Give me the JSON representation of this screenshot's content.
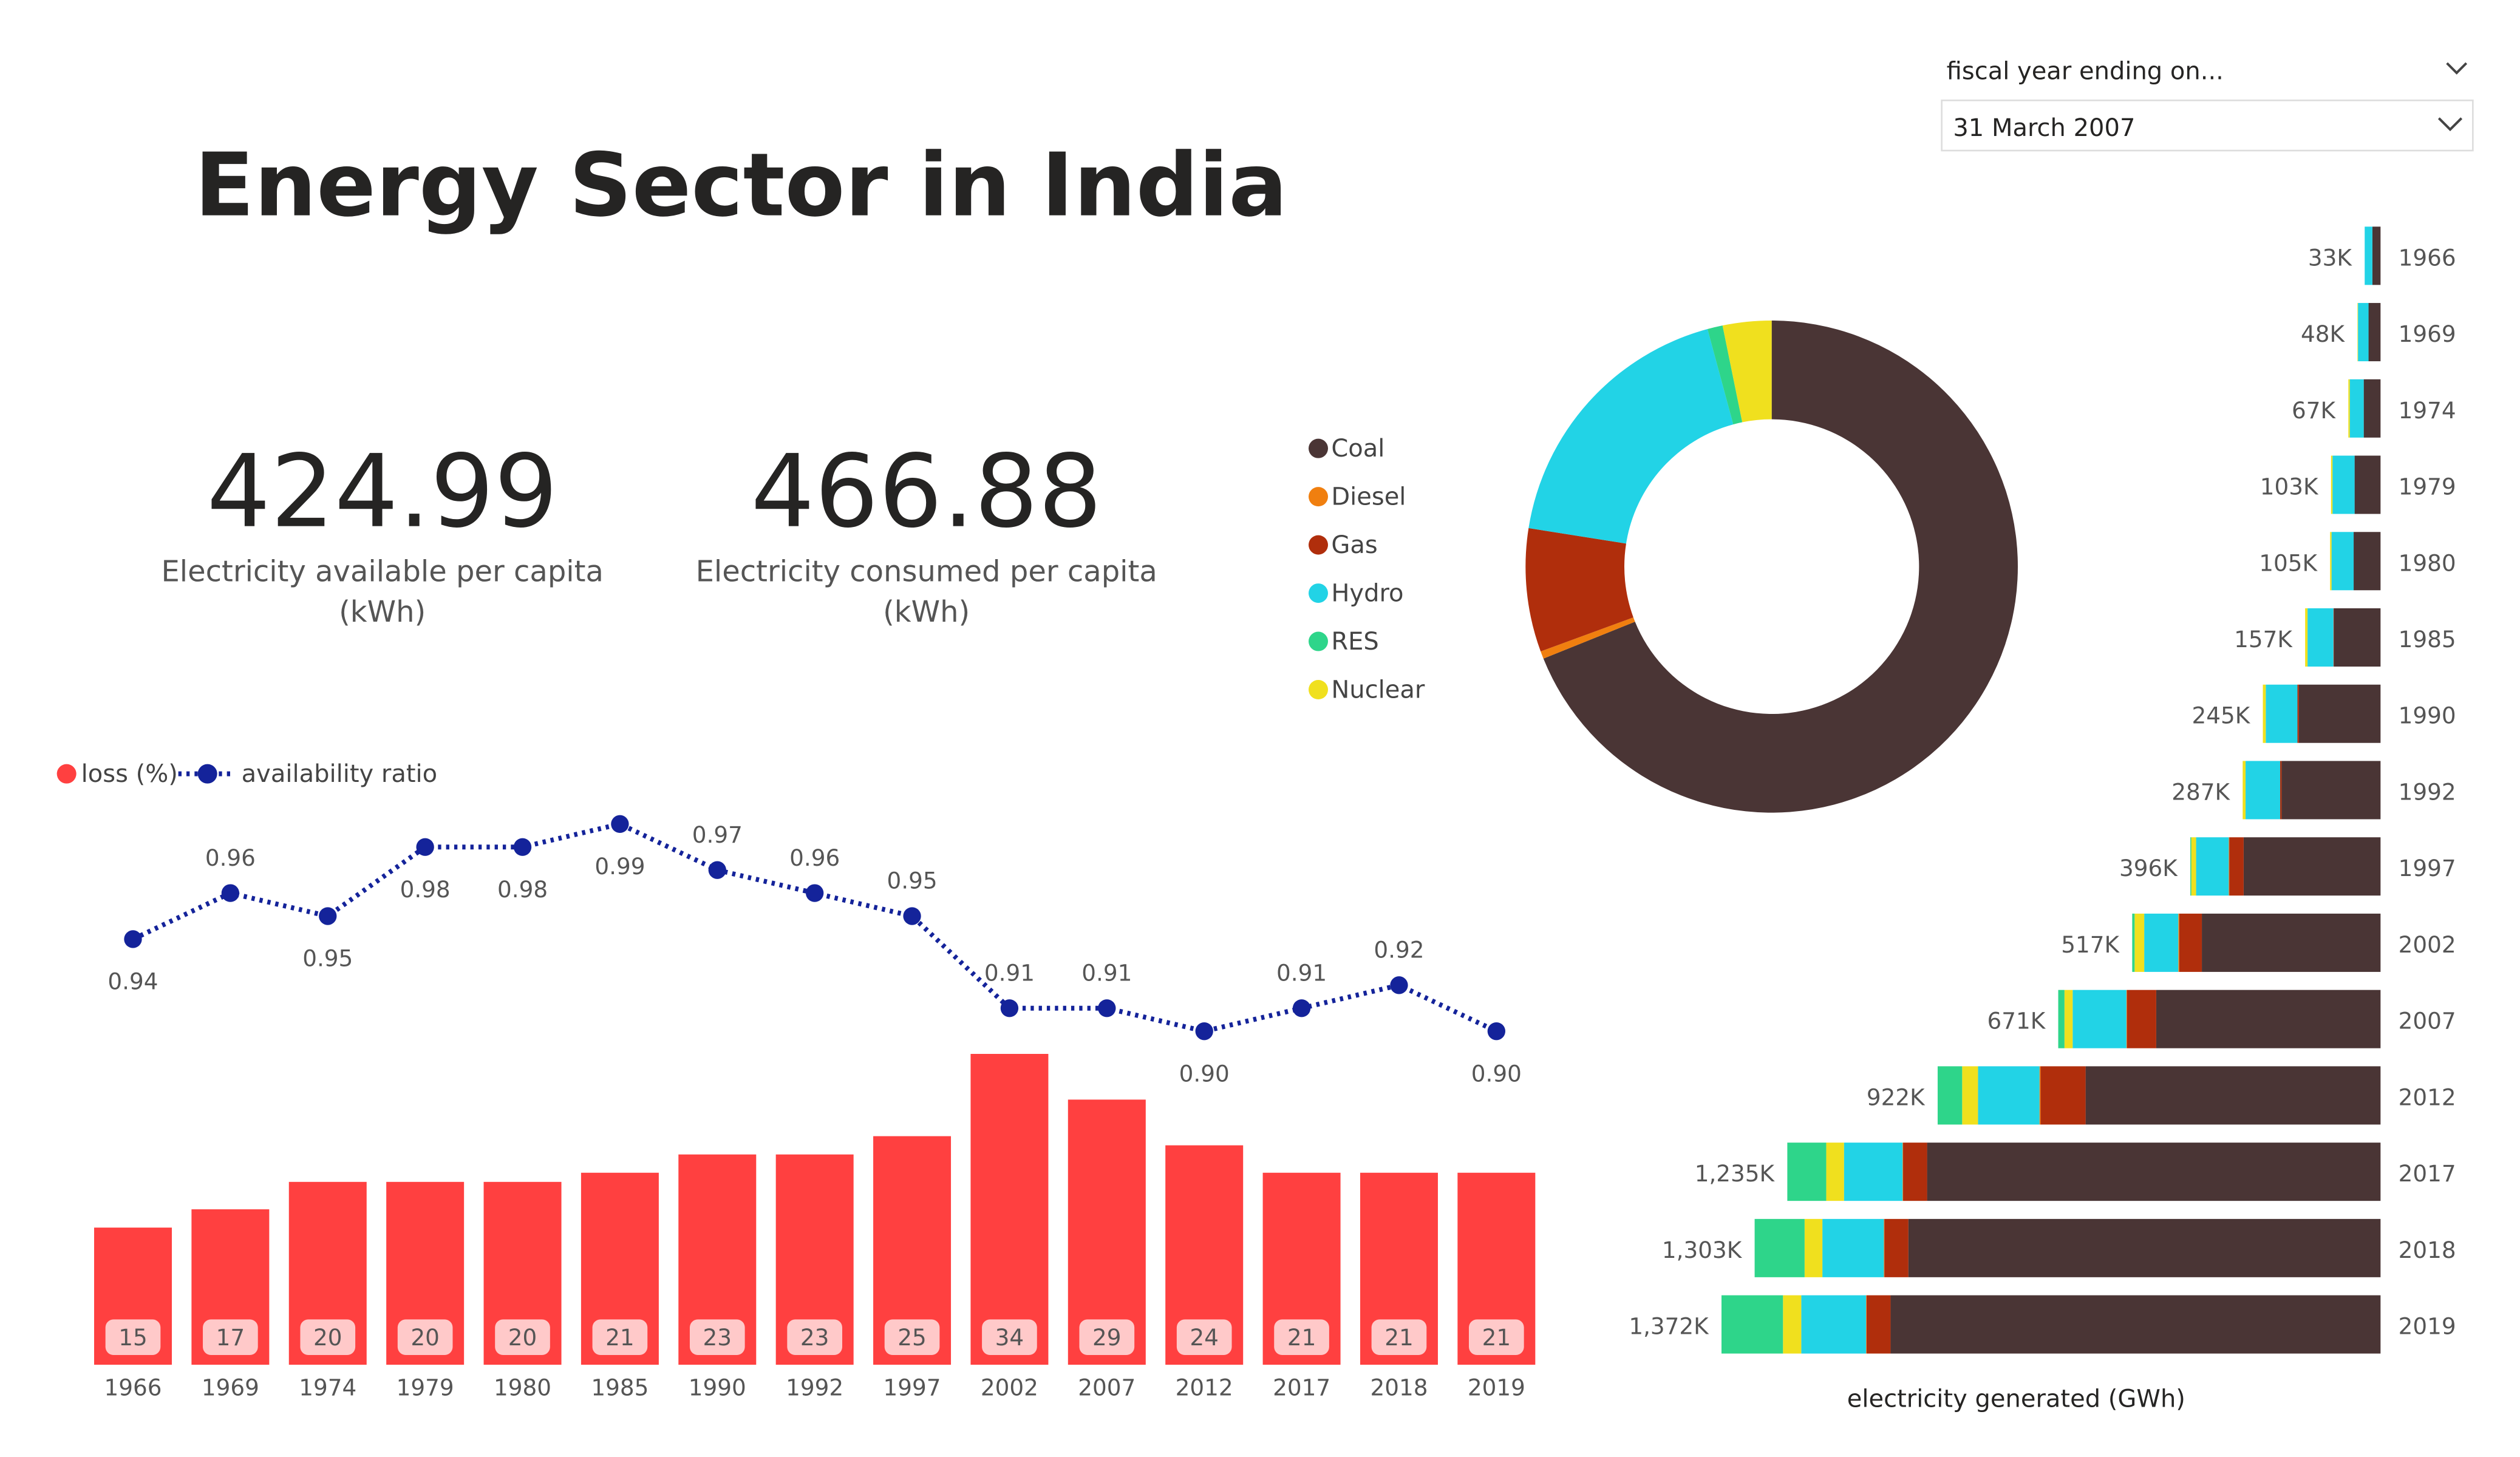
{
  "title": "Energy Sector in India",
  "slicer": {
    "header": "fiscal year ending on...",
    "selected": "31 March 2007"
  },
  "cards": [
    {
      "value": 424.99,
      "label_lines": [
        "Electricity available per capita",
        "(kWh)"
      ]
    },
    {
      "value": 466.88,
      "label_lines": [
        "Electricity consumed per capita",
        "(kWh)"
      ]
    }
  ],
  "chart_data": [
    {
      "type": "combo",
      "categories": [
        "1966",
        "1969",
        "1974",
        "1979",
        "1980",
        "1985",
        "1990",
        "1992",
        "1997",
        "2002",
        "2007",
        "2012",
        "2017",
        "2018",
        "2019"
      ],
      "series": [
        {
          "name": "loss (%)",
          "color": "#ff4040",
          "kind": "bar",
          "values": [
            15,
            17,
            20,
            20,
            20,
            21,
            23,
            23,
            25,
            34,
            29,
            24,
            21,
            21,
            21
          ]
        },
        {
          "name": "availability ratio",
          "color": "#14239a",
          "kind": "line",
          "values": [
            0.94,
            0.96,
            0.95,
            0.98,
            0.98,
            0.99,
            0.97,
            0.96,
            0.95,
            0.91,
            0.91,
            0.9,
            0.91,
            0.92,
            0.9
          ],
          "value_labels": [
            "0.94",
            "0.96",
            "0.95",
            "0.98",
            "0.98",
            "0.99",
            "0.97",
            "0.96",
            "0.95",
            "0.91",
            "0.91",
            "0.90",
            "0.91",
            "0.92",
            "0.90"
          ]
        }
      ]
    },
    {
      "type": "donut",
      "categories": [
        "Coal",
        "Diesel",
        "Gas",
        "Hydro",
        "RES",
        "Nuclear"
      ],
      "colors": [
        "#4a3535",
        "#f07f0f",
        "#b02e0c",
        "#22d3e6",
        "#2ed58a",
        "#f0e01e"
      ],
      "values": [
        68.9,
        0.5,
        8.1,
        18.3,
        1.0,
        3.2
      ]
    },
    {
      "type": "stacked_bar_h",
      "x_label": "electricity generated (GWh)",
      "categories": [
        "1966",
        "1969",
        "1974",
        "1979",
        "1980",
        "1985",
        "1990",
        "1992",
        "1997",
        "2002",
        "2007",
        "2012",
        "2017",
        "2018",
        "2019"
      ],
      "total_labels": [
        "33K",
        "48K",
        "67K",
        "103K",
        "105K",
        "157K",
        "245K",
        "287K",
        "396K",
        "517K",
        "671K",
        "922K",
        "1,235K",
        "1,303K",
        "1,372K"
      ],
      "series": [
        {
          "color": "#4a3535",
          "values": [
            17000,
            25000,
            35000,
            54000,
            56000,
            97000,
            170000,
            206000,
            285000,
            372000,
            467000,
            614000,
            944000,
            983000,
            1020000
          ]
        },
        {
          "color": "#b02e0c",
          "values": [
            0,
            0,
            0,
            0,
            0,
            1000,
            3000,
            3000,
            30000,
            47000,
            61000,
            94000,
            50000,
            50000,
            50000
          ]
        },
        {
          "color": "#f07f0f",
          "values": [
            0,
            0,
            0,
            0,
            0,
            0,
            0,
            0,
            1000,
            2000,
            1000,
            2000,
            1000,
            1000,
            1000
          ]
        },
        {
          "color": "#22d3e6",
          "values": [
            16000,
            22000,
            29000,
            46000,
            46000,
            54000,
            66000,
            72000,
            68000,
            71000,
            112000,
            128000,
            122000,
            128000,
            135000
          ]
        },
        {
          "color": "#f0e01e",
          "values": [
            0,
            1000,
            3000,
            3000,
            3000,
            5000,
            6000,
            6000,
            10000,
            20000,
            17000,
            33000,
            37000,
            37000,
            38000
          ]
        },
        {
          "color": "#2ed58a",
          "values": [
            0,
            0,
            0,
            0,
            0,
            0,
            0,
            0,
            2000,
            5000,
            13000,
            51000,
            81000,
            104000,
            128000
          ]
        }
      ]
    }
  ]
}
